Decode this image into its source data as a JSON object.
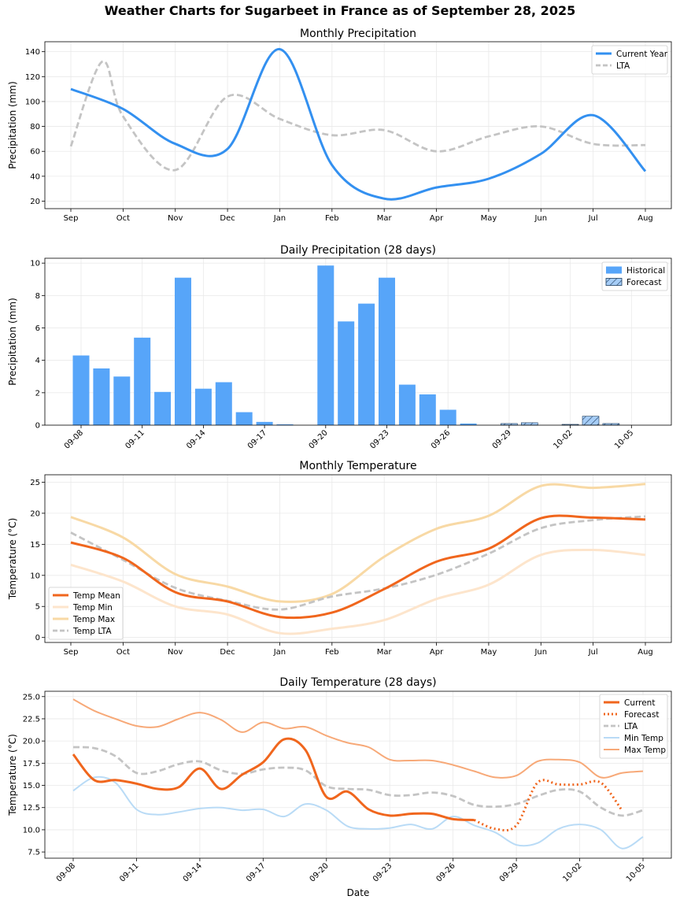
{
  "suptitle": "Weather Charts for Sugarbeet in France as of September 28, 2025",
  "colors": {
    "precip_current": "#3390f0",
    "lta": "#c4c4c4",
    "bar_hist": "#57a5f9",
    "bar_forecast": "#a6cdf7",
    "temp_mean": "#f0661d",
    "temp_min": "#fde5cc",
    "temp_max": "#f8d9a5",
    "daily_min": "#b9dbf6",
    "daily_max": "#f7a978"
  },
  "chart_data": [
    {
      "id": "monthly_precip",
      "type": "line",
      "title": "Monthly Precipitation",
      "xlabel": "",
      "ylabel": "Precipitation (mm)",
      "categories": [
        "Sep",
        "Oct",
        "Nov",
        "Dec",
        "Jan",
        "Feb",
        "Mar",
        "Apr",
        "May",
        "Jun",
        "Jul",
        "Aug"
      ],
      "yticks": [
        20,
        40,
        60,
        80,
        100,
        120,
        140
      ],
      "ylim": [
        14,
        148
      ],
      "legend": "top-right",
      "series": [
        {
          "name": "Current Year",
          "values": [
            110,
            94,
            66,
            62,
            142,
            49,
            22,
            31,
            38,
            58,
            89,
            44
          ]
        },
        {
          "name": "LTA",
          "values": [
            64,
            88,
            45,
            104,
            86,
            73,
            77,
            60,
            72,
            80,
            66,
            65
          ]
        }
      ],
      "lta_peak": {
        "x": 0.6,
        "y": 132
      }
    },
    {
      "id": "daily_precip",
      "type": "bar",
      "title": "Daily Precipitation (28 days)",
      "xlabel": "",
      "ylabel": "Precipitation (mm)",
      "tick_labels": [
        "09-08",
        "09-11",
        "09-14",
        "09-17",
        "09-20",
        "09-23",
        "09-26",
        "09-29",
        "10-02",
        "10-05"
      ],
      "tick_index": [
        0,
        3,
        6,
        9,
        12,
        15,
        18,
        21,
        24,
        27
      ],
      "dates": [
        "09-08",
        "09-09",
        "09-10",
        "09-11",
        "09-12",
        "09-13",
        "09-14",
        "09-15",
        "09-16",
        "09-17",
        "09-18",
        "09-19",
        "09-20",
        "09-21",
        "09-22",
        "09-23",
        "09-24",
        "09-25",
        "09-26",
        "09-27",
        "09-28",
        "09-29",
        "09-30",
        "10-01",
        "10-02",
        "10-03",
        "10-04",
        "10-05"
      ],
      "values": [
        4.3,
        3.5,
        3.0,
        5.4,
        2.05,
        9.1,
        2.25,
        2.65,
        0.8,
        0.2,
        0.05,
        0,
        9.85,
        6.4,
        7.5,
        9.1,
        2.5,
        1.9,
        0.95,
        0.1,
        0,
        0.1,
        0.15,
        0,
        0.05,
        0.55,
        0.1,
        0
      ],
      "forecast_start_index": 20,
      "yticks": [
        0,
        2,
        4,
        6,
        8,
        10
      ],
      "ylim": [
        0,
        10.3
      ],
      "legend": "top-right",
      "legend_labels": [
        "Historical",
        "Forecast"
      ]
    },
    {
      "id": "monthly_temp",
      "type": "line",
      "title": "Monthly Temperature",
      "xlabel": "",
      "ylabel": "Temperature (°C)",
      "categories": [
        "Sep",
        "Oct",
        "Nov",
        "Dec",
        "Jan",
        "Feb",
        "Mar",
        "Apr",
        "May",
        "Jun",
        "Jul",
        "Aug"
      ],
      "yticks": [
        0,
        5,
        10,
        15,
        20,
        25
      ],
      "ylim": [
        -0.8,
        26.2
      ],
      "legend": "lower-left",
      "series": [
        {
          "name": "Temp Mean",
          "values": [
            15.3,
            12.8,
            7.3,
            5.8,
            3.3,
            4.0,
            7.8,
            12.2,
            14.3,
            19.2,
            19.3,
            19.0
          ]
        },
        {
          "name": "Temp Min",
          "values": [
            11.7,
            9.0,
            5.0,
            3.7,
            0.7,
            1.4,
            2.8,
            6.2,
            8.5,
            13.3,
            14.1,
            13.3
          ]
        },
        {
          "name": "Temp Max",
          "values": [
            19.4,
            16.1,
            10.2,
            8.2,
            5.8,
            7.0,
            13.0,
            17.5,
            19.6,
            24.4,
            24.1,
            24.7
          ]
        },
        {
          "name": "Temp LTA",
          "values": [
            16.9,
            12.5,
            8.0,
            5.9,
            4.5,
            6.6,
            7.9,
            10.1,
            13.5,
            17.6,
            18.9,
            19.5
          ]
        }
      ]
    },
    {
      "id": "daily_temp",
      "type": "line",
      "title": "Daily Temperature (28 days)",
      "xlabel": "Date",
      "ylabel": "Temperature (°C)",
      "tick_labels": [
        "09-08",
        "09-11",
        "09-14",
        "09-17",
        "09-20",
        "09-23",
        "09-26",
        "09-29",
        "10-02",
        "10-05"
      ],
      "tick_index": [
        0,
        3,
        6,
        9,
        12,
        15,
        18,
        21,
        24,
        27
      ],
      "yticks": [
        7.5,
        10.0,
        12.5,
        15.0,
        17.5,
        20.0,
        22.5,
        25.0
      ],
      "ylim": [
        6.8,
        25.6
      ],
      "legend": "top-right",
      "series": [
        {
          "name": "Current",
          "values": [
            18.5,
            15.6,
            15.6,
            15.2,
            14.6,
            14.8,
            16.9,
            14.6,
            16.2,
            17.6,
            20.2,
            19.0,
            13.7,
            14.3,
            12.3,
            11.6,
            11.8,
            11.8,
            11.2,
            11.1
          ]
        },
        {
          "name": "Forecast",
          "values": [
            11.1,
            10.1,
            10.5,
            15.3,
            15.1,
            15.1,
            15.3,
            12.2
          ]
        },
        {
          "name": "LTA",
          "values": [
            19.3,
            19.2,
            18.3,
            16.4,
            16.6,
            17.4,
            17.7,
            16.7,
            16.3,
            16.8,
            17.0,
            16.7,
            14.9,
            14.6,
            14.5,
            13.9,
            13.9,
            14.2,
            13.8,
            12.8,
            12.6,
            12.9,
            13.8,
            14.5,
            14.3,
            12.5,
            11.6,
            12.2
          ]
        },
        {
          "name": "Min Temp",
          "values": [
            14.4,
            15.9,
            15.3,
            12.3,
            11.7,
            12.0,
            12.4,
            12.5,
            12.2,
            12.3,
            11.5,
            12.9,
            12.2,
            10.4,
            10.1,
            10.2,
            10.6,
            10.1,
            11.5,
            10.5,
            9.7,
            8.3,
            8.5,
            10.1,
            10.6,
            10.0,
            7.9,
            9.2
          ]
        },
        {
          "name": "Max Temp",
          "values": [
            24.7,
            23.4,
            22.5,
            21.7,
            21.6,
            22.5,
            23.2,
            22.4,
            21.0,
            22.1,
            21.4,
            21.6,
            20.6,
            19.8,
            19.3,
            17.9,
            17.8,
            17.8,
            17.3,
            16.6,
            15.9,
            16.1,
            17.7,
            17.9,
            17.6,
            15.9,
            16.4,
            16.6
          ]
        }
      ]
    }
  ]
}
